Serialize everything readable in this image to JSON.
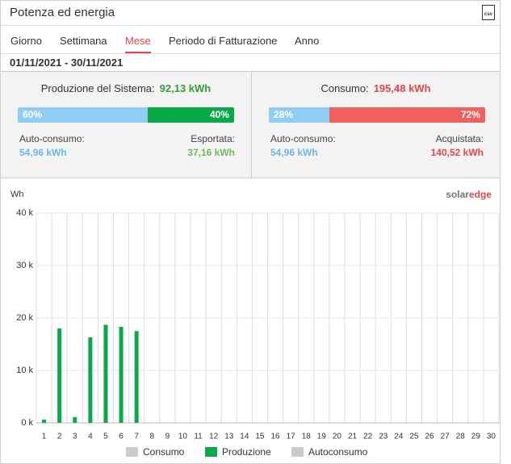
{
  "header": {
    "title": "Potenza ed energia",
    "icon": "csv"
  },
  "tabs": [
    "Giorno",
    "Settimana",
    "Mese",
    "Periodo di Fatturazione",
    "Anno"
  ],
  "active_tab": 2,
  "date_range": "01/11/2021 - 30/11/2021",
  "summary": [
    {
      "label": "Produzione del Sistema:",
      "total": "92,13 kWh",
      "total_color": "#2e9e3e",
      "split": [
        60,
        40
      ],
      "split_labels": [
        "60%",
        "40%"
      ],
      "split_colors": [
        "#90cdf4",
        "#0ba84a"
      ],
      "left_label": "Auto-consumo:",
      "left_value": "54,96 kWh",
      "left_color": "#6db6e6",
      "right_label": "Esportata:",
      "right_value": "37,16 kWh",
      "right_color": "#6dbb5a"
    },
    {
      "label": "Consumo:",
      "total": "195,48 kWh",
      "total_color": "#e0474c",
      "split": [
        28,
        72
      ],
      "split_labels": [
        "28%",
        "72%"
      ],
      "split_colors": [
        "#90cdf4",
        "#f0605f"
      ],
      "left_label": "Auto-consumo:",
      "left_value": "54,96 kWh",
      "left_color": "#6db6e6",
      "right_label": "Acquistata:",
      "right_value": "140,52 kWh",
      "right_color": "#e0474c"
    }
  ],
  "chart_data": {
    "type": "bar",
    "y_label": "Wh",
    "logo": [
      "solar",
      "edge"
    ],
    "categories": [
      "1",
      "2",
      "3",
      "4",
      "5",
      "6",
      "7",
      "8",
      "9",
      "10",
      "11",
      "12",
      "13",
      "14",
      "15",
      "16",
      "17",
      "18",
      "19",
      "20",
      "21",
      "22",
      "23",
      "24",
      "25",
      "26",
      "27",
      "28",
      "29",
      "30"
    ],
    "series": [
      {
        "name": "Produzione",
        "color": "#0ba84a",
        "values": [
          600,
          18000,
          1100,
          16300,
          18700,
          18300,
          17500,
          null,
          null,
          null,
          null,
          null,
          null,
          null,
          null,
          null,
          null,
          null,
          null,
          null,
          null,
          null,
          null,
          null,
          null,
          null,
          null,
          null,
          null,
          null
        ]
      }
    ],
    "hidden_series": [
      {
        "name": "Consumo",
        "color": "#cccccc"
      },
      {
        "name": "Autoconsumo",
        "color": "#cccccc"
      }
    ],
    "ylim": [
      0,
      40000
    ],
    "yticks": [
      {
        "value": 0,
        "label": "0 k"
      },
      {
        "value": 10000,
        "label": "10 k"
      },
      {
        "value": 20000,
        "label": "20 k"
      },
      {
        "value": 30000,
        "label": "30 k"
      },
      {
        "value": 40000,
        "label": "40 k"
      }
    ],
    "grid": true
  }
}
